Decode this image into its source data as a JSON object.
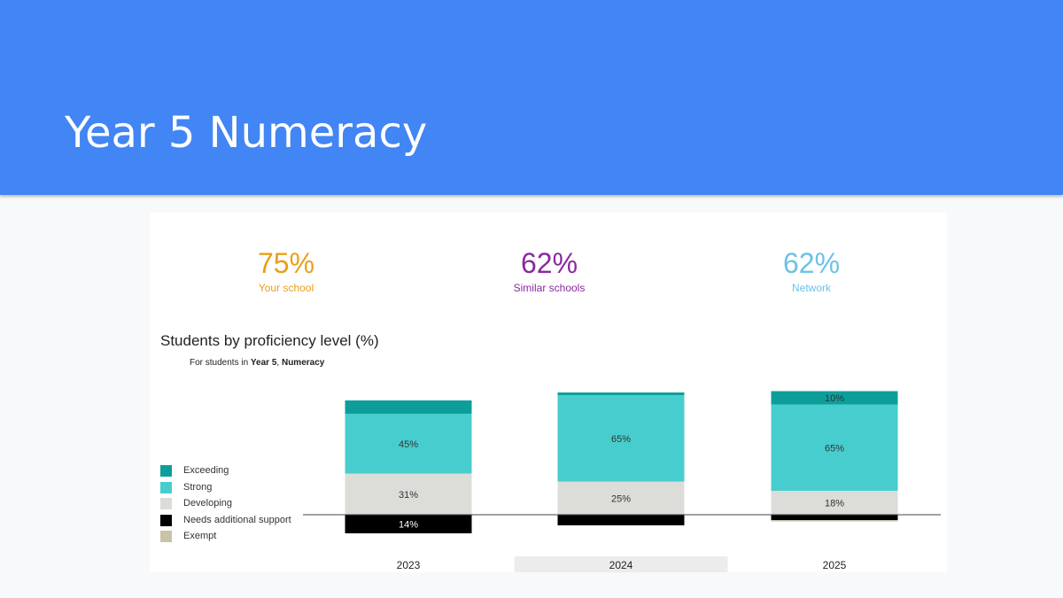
{
  "slide": {
    "title": "Year 5 Numeracy"
  },
  "stats": [
    {
      "value": "75%",
      "label": "Your school",
      "color": "#e8a01a"
    },
    {
      "value": "62%",
      "label": "Similar schools",
      "color": "#8a2a9e"
    },
    {
      "value": "62%",
      "label": "Network",
      "color": "#6cc2e6"
    }
  ],
  "chart_data": {
    "type": "bar",
    "stacked": true,
    "diverging_baseline": true,
    "title": "Students by proficiency level (%)",
    "subtitle": {
      "prefix": "For students in ",
      "year": "Year 5",
      "separator": ", ",
      "domain": "Numeracy"
    },
    "categories": [
      "2023",
      "2024",
      "2025"
    ],
    "highlighted_category": "2024",
    "legend_position": "left",
    "series": [
      {
        "name": "Exceeding",
        "color": "#0e9e9a",
        "values": [
          10,
          2,
          10
        ],
        "labels": [
          "",
          "",
          "10%"
        ]
      },
      {
        "name": "Strong",
        "color": "#48cdce",
        "values": [
          45,
          65,
          65
        ],
        "labels": [
          "45%",
          "65%",
          "65%"
        ]
      },
      {
        "name": "Developing",
        "color": "#dcdcd8",
        "values": [
          31,
          25,
          18
        ],
        "labels": [
          "31%",
          "25%",
          "18%"
        ]
      },
      {
        "name": "Needs additional support",
        "color": "#000000",
        "values": [
          14,
          8,
          4
        ],
        "labels": [
          "14%",
          "",
          ""
        ]
      },
      {
        "name": "Exempt",
        "color": "#c7c4a6",
        "values": [
          0,
          0,
          1
        ],
        "labels": [
          "",
          "",
          ""
        ]
      }
    ]
  }
}
